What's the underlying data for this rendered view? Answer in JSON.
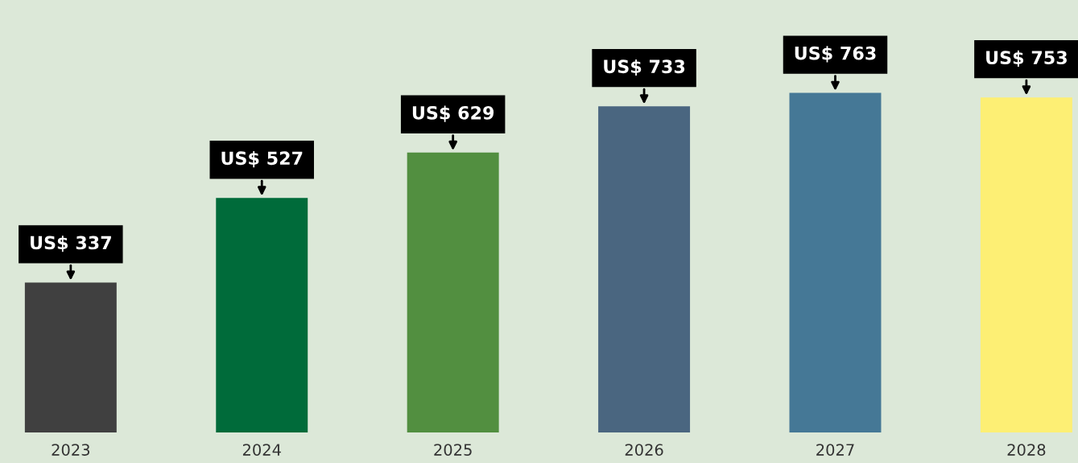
{
  "chart_data": {
    "type": "bar",
    "categories": [
      "2023",
      "2024",
      "2025",
      "2026",
      "2027",
      "2028"
    ],
    "values": [
      337,
      527,
      629,
      733,
      763,
      753
    ],
    "colors": [
      "#404040",
      "#006b3a",
      "#528f40",
      "#4a6680",
      "#457896",
      "#fdef74"
    ],
    "value_labels": [
      "US$ 337",
      "US$ 527",
      "US$ 629",
      "US$ 733",
      "US$ 763",
      "US$ 753"
    ]
  }
}
